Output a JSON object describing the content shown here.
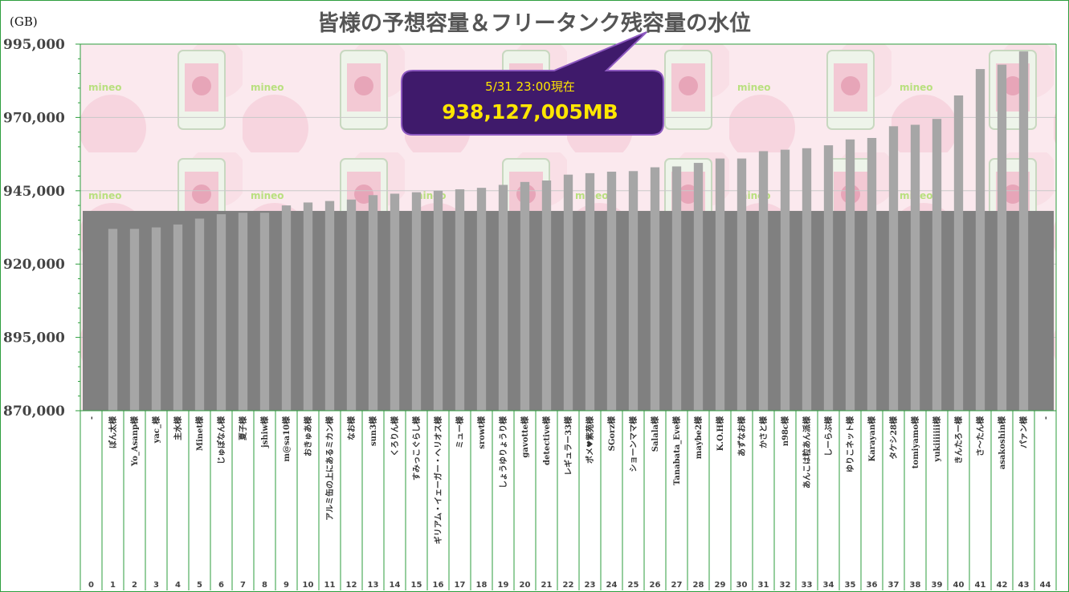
{
  "chart_data": {
    "type": "bar",
    "title": "皆様の予想容量＆フリータンク残容量の水位",
    "unit_label": "(GB)",
    "ylim": [
      870000,
      995000
    ],
    "yticks": [
      870000,
      895000,
      920000,
      945000,
      970000,
      995000
    ],
    "ytick_labels": [
      "870,000",
      "895,000",
      "920,000",
      "945,000",
      "970,000",
      "995,000"
    ],
    "grid": true,
    "indices": [
      "0",
      "1",
      "2",
      "3",
      "4",
      "5",
      "6",
      "7",
      "8",
      "9",
      "10",
      "11",
      "12",
      "13",
      "14",
      "15",
      "16",
      "17",
      "18",
      "19",
      "20",
      "21",
      "22",
      "23",
      "24",
      "25",
      "26",
      "27",
      "28",
      "29",
      "30",
      "31",
      "32",
      "33",
      "34",
      "35",
      "36",
      "37",
      "38",
      "39",
      "40",
      "41",
      "42",
      "43",
      "44"
    ],
    "categories": [
      "-",
      "ぽん太様",
      "Yo_Asanp様",
      "yac_様",
      "主水様",
      "Minet様",
      "じゅぽなん様",
      "夏子様",
      "jshiw様",
      "m@sa10様",
      "おきゅあ様",
      "アルミ缶の上にあるミカン様",
      "なお様",
      "sun3様",
      "くろりん様",
      "すみっこぐらし様",
      "ギリアム・イェーガー・ヘリオス様",
      "ミュー様",
      "srowt様",
      "しょうゆりょうり様",
      "gavotte様",
      "detective様",
      "レギュラー33様",
      "ポメ♥紫苑様",
      "SGorz様",
      "ショーンママ様",
      "Salala様",
      "Tanabata_Eve様",
      "maybe2様",
      "K.O.H様",
      "あずなお様",
      "かさと様",
      "n98c様",
      "あんこは粒あん派様",
      "しーらぶ様",
      "ゆりこネット様",
      "Karayan様",
      "タケシ28様",
      "tomiyamo様",
      "yukiiiiiii様",
      "きんたろー様",
      "さ～たん様",
      "asakoshin様",
      "パァン様",
      "-"
    ],
    "values": [
      null,
      932000,
      932000,
      932500,
      933500,
      935500,
      937000,
      937500,
      937500,
      940000,
      941000,
      941500,
      942000,
      943500,
      944000,
      944500,
      945000,
      945500,
      946000,
      947000,
      948000,
      948500,
      950500,
      951000,
      951500,
      951700,
      953000,
      953300,
      954500,
      956000,
      956000,
      958500,
      959000,
      959500,
      960500,
      962500,
      963000,
      967000,
      967500,
      969500,
      977500,
      986500,
      988000,
      992500,
      null
    ],
    "series": [
      {
        "name": "",
        "color": "#a6a6a6"
      }
    ],
    "level": {
      "value": 938127,
      "color": "#808080"
    },
    "callout": {
      "date_text": "5/31 23:00現在",
      "value_text": "938,127,005MB",
      "fill": "#3f1a6b",
      "border": "#8d59c0",
      "text_color": "#ffe600"
    }
  }
}
